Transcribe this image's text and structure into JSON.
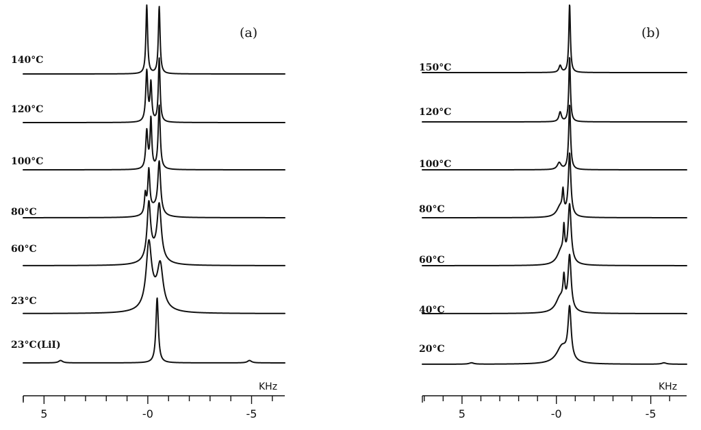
{
  "figure": {
    "colors": {
      "ink": "#111111",
      "background": "#ffffff"
    }
  },
  "chart_data": [
    {
      "type": "line",
      "panel_label": "(a)",
      "x_unit": "KHz",
      "x_reversed": true,
      "xlim": [
        6,
        -6.6
      ],
      "tick_labels": [
        {
          "value": 5,
          "text": "5"
        },
        {
          "value": 0,
          "text": "-0"
        },
        {
          "value": -5,
          "text": "-5"
        }
      ],
      "minor_tick_step": 1,
      "series": [
        {
          "name": "140°C",
          "peaks": [
            {
              "center": 0.05,
              "height": 1.0,
              "width": 0.05
            },
            {
              "center": -0.55,
              "height": 0.98,
              "width": 0.05
            }
          ]
        },
        {
          "name": "120°C",
          "peaks": [
            {
              "center": 0.05,
              "height": 0.74,
              "width": 0.06
            },
            {
              "center": -0.15,
              "height": 0.55,
              "width": 0.05
            },
            {
              "center": -0.55,
              "height": 0.93,
              "width": 0.05
            }
          ]
        },
        {
          "name": "100°C",
          "peaks": [
            {
              "center": 0.05,
              "height": 0.55,
              "width": 0.06
            },
            {
              "center": -0.15,
              "height": 0.72,
              "width": 0.05
            },
            {
              "center": -0.55,
              "height": 0.93,
              "width": 0.06
            }
          ]
        },
        {
          "name": "80°C",
          "peaks": [
            {
              "center": 0.12,
              "height": 0.28,
              "width": 0.05
            },
            {
              "center": -0.05,
              "height": 0.62,
              "width": 0.06
            },
            {
              "center": -0.55,
              "height": 0.75,
              "width": 0.08
            },
            {
              "center": -0.3,
              "height": 0.12,
              "width": 0.3
            }
          ]
        },
        {
          "name": "60°C",
          "peaks": [
            {
              "center": -0.05,
              "height": 0.8,
              "width": 0.1
            },
            {
              "center": -0.55,
              "height": 0.78,
              "width": 0.12
            },
            {
              "center": -0.3,
              "height": 0.15,
              "width": 0.4
            }
          ]
        },
        {
          "name": "23°C",
          "peaks": [
            {
              "center": -0.05,
              "height": 0.88,
              "width": 0.15
            },
            {
              "center": -0.6,
              "height": 0.57,
              "width": 0.16
            },
            {
              "center": -0.3,
              "height": 0.2,
              "width": 0.45
            }
          ]
        },
        {
          "name": "23°C(LiI)",
          "peaks": [
            {
              "center": -0.45,
              "height": 0.95,
              "width": 0.07
            },
            {
              "center": 4.2,
              "height": 0.035,
              "width": 0.12
            },
            {
              "center": -4.9,
              "height": 0.035,
              "width": 0.12
            }
          ]
        }
      ]
    },
    {
      "type": "line",
      "panel_label": "(b)",
      "x_unit": "KHz",
      "x_reversed": true,
      "xlim": [
        7.1,
        -6.9
      ],
      "tick_labels": [
        {
          "value": 5,
          "text": "5"
        },
        {
          "value": 0,
          "text": "-0"
        },
        {
          "value": -5,
          "text": "-5"
        }
      ],
      "minor_tick_step": 1,
      "series": [
        {
          "name": "150°C",
          "peaks": [
            {
              "center": -0.7,
              "height": 1.0,
              "width": 0.05
            },
            {
              "center": -0.2,
              "height": 0.1,
              "width": 0.08
            }
          ]
        },
        {
          "name": "120°C",
          "peaks": [
            {
              "center": -0.7,
              "height": 0.95,
              "width": 0.05
            },
            {
              "center": -0.2,
              "height": 0.14,
              "width": 0.08
            }
          ]
        },
        {
          "name": "100°C",
          "peaks": [
            {
              "center": -0.7,
              "height": 0.95,
              "width": 0.06
            },
            {
              "center": -0.15,
              "height": 0.1,
              "width": 0.12
            }
          ]
        },
        {
          "name": "80°C",
          "peaks": [
            {
              "center": -0.7,
              "height": 0.92,
              "width": 0.08
            },
            {
              "center": -0.35,
              "height": 0.3,
              "width": 0.05
            },
            {
              "center": -0.2,
              "height": 0.15,
              "width": 0.22
            }
          ]
        },
        {
          "name": "60°C",
          "peaks": [
            {
              "center": -0.7,
              "height": 0.85,
              "width": 0.1
            },
            {
              "center": -0.4,
              "height": 0.4,
              "width": 0.05
            },
            {
              "center": -0.25,
              "height": 0.2,
              "width": 0.25
            }
          ]
        },
        {
          "name": "40°C",
          "peaks": [
            {
              "center": -0.7,
              "height": 0.8,
              "width": 0.1
            },
            {
              "center": -0.4,
              "height": 0.38,
              "width": 0.06
            },
            {
              "center": -0.2,
              "height": 0.22,
              "width": 0.28
            }
          ]
        },
        {
          "name": "20°C",
          "peaks": [
            {
              "center": -0.7,
              "height": 0.75,
              "width": 0.1
            },
            {
              "center": -0.3,
              "height": 0.25,
              "width": 0.35
            },
            {
              "center": 4.5,
              "height": 0.02,
              "width": 0.15
            },
            {
              "center": -5.7,
              "height": 0.02,
              "width": 0.15
            }
          ]
        }
      ]
    }
  ]
}
